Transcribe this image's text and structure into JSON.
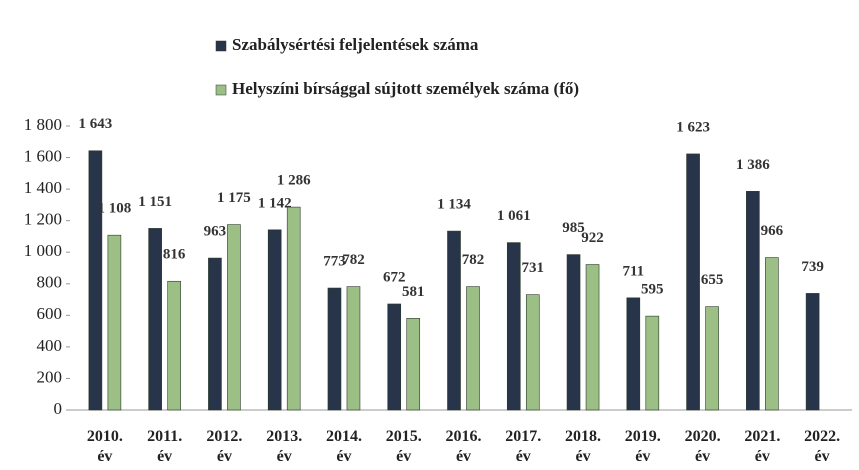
{
  "chart_data": {
    "type": "bar",
    "categories": [
      "2010. év",
      "2011. év",
      "2012. év",
      "2013. év",
      "2014. év",
      "2015. év",
      "2016. év",
      "2017. év",
      "2018. év",
      "2019. év",
      "2020. év",
      "2021. év",
      "2022. év"
    ],
    "series": [
      {
        "name": "Szabálysértési feljelentések száma",
        "color": "#27344a",
        "values": [
          1643,
          1151,
          963,
          1142,
          773,
          672,
          1134,
          1061,
          985,
          711,
          1623,
          1386,
          739
        ],
        "value_labels": [
          "1 643",
          "1 151",
          "963",
          "1 142",
          "773",
          "672",
          "1 134",
          "1 061",
          "985",
          "711",
          "1 623",
          "1 386",
          "739"
        ]
      },
      {
        "name": "Helyszíni bírsággal sújtott személyek száma (fő)",
        "color": "#9bbf85",
        "values": [
          1108,
          816,
          1175,
          1286,
          782,
          581,
          782,
          731,
          922,
          595,
          655,
          966,
          null
        ],
        "value_labels": [
          "1 108",
          "816",
          "1 175",
          "1 286",
          "782",
          "581",
          "782",
          "731",
          "922",
          "595",
          "655",
          "966",
          null
        ]
      }
    ],
    "ylim": [
      0,
      1800
    ],
    "yticks": [
      0,
      200,
      400,
      600,
      800,
      {
        "value": 1000,
        "label": "1 000"
      },
      {
        "value": 1200,
        "label": "1 200"
      },
      {
        "value": 1400,
        "label": "1 400"
      },
      {
        "value": 1600,
        "label": "1 600"
      },
      {
        "value": 1800,
        "label": "1 800"
      }
    ],
    "grid": false,
    "legend": "top"
  }
}
